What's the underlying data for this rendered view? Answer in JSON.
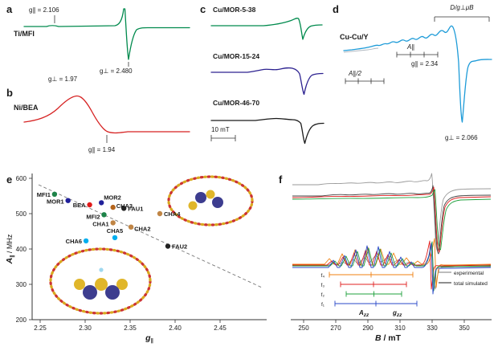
{
  "figure": {
    "background": "#ffffff",
    "panels": {
      "a": {
        "label": "a",
        "trace_name": "Ti/MFI",
        "trace_color": "#008a4d",
        "g_parallel_label": "g∥ = 2.106",
        "g_perp_label": "g⊥ = 2.480"
      },
      "b": {
        "label": "b",
        "trace_name": "Ni/BEA",
        "trace_color": "#d62222",
        "g_perp_label": "g⊥ = 1.97",
        "g_parallel_label": "g∥ = 1.94"
      },
      "c": {
        "label": "c",
        "scale_bar_label": "10 mT",
        "traces": [
          {
            "name": "Cu/MOR-5-38",
            "color": "#008a4d"
          },
          {
            "name": "Cu/MOR-15-24",
            "color": "#2d2290"
          },
          {
            "name": "Cu/MOR-46-70",
            "color": "#1a1a1a"
          }
        ]
      },
      "d": {
        "label": "d",
        "trace_name": "Cu-Cu/Y",
        "trace_color": "#1d9bd8",
        "dipolar_label": "D/g⊥μB",
        "A_parallel_label": "A∥",
        "A_parallel_half_label": "A∥/2",
        "g_parallel_label": "g∥ = 2.34",
        "g_perp_label": "g⊥ = 2.066"
      },
      "e": {
        "label": "e"
      },
      "f": {
        "label": "f"
      }
    }
  },
  "chart_data": [
    {
      "panel": "a",
      "type": "line",
      "series": [
        {
          "name": "Ti/MFI",
          "color": "#008a4d"
        }
      ],
      "annotations": {
        "g_parallel": 2.106,
        "g_perp": 2.48
      },
      "description": "EPR derivative spectrum of Ti/MFI; flat baseline with weak feature at g_parallel = 2.106 and a sharp derivative line at g_perp = 2.480"
    },
    {
      "panel": "b",
      "type": "line",
      "series": [
        {
          "name": "Ni/BEA",
          "color": "#d62222"
        }
      ],
      "annotations": {
        "g_perp": 1.97,
        "g_parallel": 1.94
      },
      "description": "EPR spectrum of Ni/BEA; broad peak at g_perp = 1.97 and shoulder marked at g_parallel = 1.94"
    },
    {
      "panel": "c",
      "type": "line",
      "series": [
        {
          "name": "Cu/MOR-5-38",
          "color": "#008a4d"
        },
        {
          "name": "Cu/MOR-15-24",
          "color": "#2d2290"
        },
        {
          "name": "Cu/MOR-46-70",
          "color": "#1a1a1a"
        }
      ],
      "scale_bar_mT": 10,
      "description": "Stacked Cu(II) EPR derivative spectra of three Cu/MOR samples, each with sharp perpendicular feature; 10 mT scale bar"
    },
    {
      "panel": "d",
      "type": "line",
      "series": [
        {
          "name": "Cu-Cu/Y",
          "color": "#1d9bd8"
        }
      ],
      "annotations": {
        "g_parallel": 2.34,
        "g_perp": 2.066,
        "markers": [
          "A∥",
          "A∥/2",
          "D/g⊥μB"
        ]
      },
      "description": "EPR spectrum of Cu-Cu dimer in Y zeolite showing hyperfine combs A∥ and A∥/2, dipolar splitting D/g⊥μB, g∥ = 2.34 and sharp line at g⊥ = 2.066"
    },
    {
      "panel": "e",
      "type": "scatter",
      "xlabel_main": "g",
      "xlabel_sub": "∥",
      "ylabel_main": "A",
      "ylabel_sub": "∥",
      "ylabel_rest": " / MHz",
      "xlim": [
        2.25,
        2.5
      ],
      "ylim": [
        200,
        600
      ],
      "x_tick_labels": [
        "2.25",
        "2.30",
        "2.35",
        "2.40",
        "2.45"
      ],
      "y_tick_labels": [
        "200",
        "300",
        "400",
        "500",
        "600"
      ],
      "trend_line": "dashed negative-slope guide line",
      "points": [
        {
          "label": "MFI1",
          "g": 2.266,
          "A": 555,
          "color": "#1d8348",
          "lx": -5,
          "ly": 3,
          "anchor": "end"
        },
        {
          "label": "MOR1",
          "g": 2.281,
          "A": 537,
          "color": "#20209a",
          "lx": -5,
          "ly": 4,
          "anchor": "end"
        },
        {
          "label": "BEA",
          "g": 2.305,
          "A": 525,
          "color": "#e01b1b",
          "lx": -5,
          "ly": 3,
          "anchor": "end"
        },
        {
          "label": "MOR2",
          "g": 2.318,
          "A": 531,
          "color": "#20209a",
          "lx": 3,
          "ly": -4,
          "anchor": "start"
        },
        {
          "label": "CHA3",
          "g": 2.331,
          "A": 518,
          "color": "#b5651d",
          "lx": 4,
          "ly": 1,
          "anchor": "start"
        },
        {
          "label": "FAU1",
          "g": 2.343,
          "A": 515,
          "color": "#222222",
          "lx": 5,
          "ly": 3,
          "anchor": "start"
        },
        {
          "label": "MFI2",
          "g": 2.321,
          "A": 497,
          "color": "#1d8348",
          "lx": -5,
          "ly": 5,
          "anchor": "end"
        },
        {
          "label": "CHA4",
          "g": 2.383,
          "A": 500,
          "color": "#c08545",
          "lx": 5,
          "ly": 3,
          "anchor": "start"
        },
        {
          "label": "CHA1",
          "g": 2.331,
          "A": 474,
          "color": "#c08545",
          "lx": -5,
          "ly": 4,
          "anchor": "end"
        },
        {
          "label": "CHA2",
          "g": 2.351,
          "A": 462,
          "color": "#c08545",
          "lx": 4,
          "ly": 5,
          "anchor": "start"
        },
        {
          "label": "CHA6",
          "g": 2.301,
          "A": 423,
          "color": "#00aeef",
          "lx": -5,
          "ly": 3,
          "anchor": "end"
        },
        {
          "label": "CHA5",
          "g": 2.333,
          "A": 432,
          "color": "#00aeef",
          "lx": 0,
          "ly": -6,
          "anchor": "middle"
        },
        {
          "label": "FAU2",
          "g": 2.392,
          "A": 408,
          "color": "#222222",
          "lx": 5,
          "ly": 3,
          "anchor": "start"
        }
      ]
    },
    {
      "panel": "f",
      "type": "line",
      "xlabel_main": "B",
      "xlabel_rest": " / mT",
      "xlim": [
        245,
        355
      ],
      "x_tick_labels": [
        "250",
        "270",
        "290",
        "310",
        "330",
        "350"
      ],
      "legend": [
        "experimental",
        "total simulated"
      ],
      "legend_colors": [
        "#909090",
        "#444444"
      ],
      "component_labels": [
        "f₁",
        "f₂",
        "f₃",
        "f₄"
      ],
      "component_colors": [
        "#2848c8",
        "#1fa03c",
        "#e02020",
        "#f08010"
      ],
      "ann_A_main": "A",
      "ann_A_sub": "zz",
      "ann_g_main": "g",
      "ann_g_sub": "zz",
      "description": "X-band EPR spectra vs magnetic field B (250-350 mT): grey experimental traces overlaid with total simulated spectrum and four simulated components f1-f4; hyperfine comb region (Azz) around 265-310 mT centred at gzz, sharp perpendicular features near 325-335 mT"
    }
  ]
}
